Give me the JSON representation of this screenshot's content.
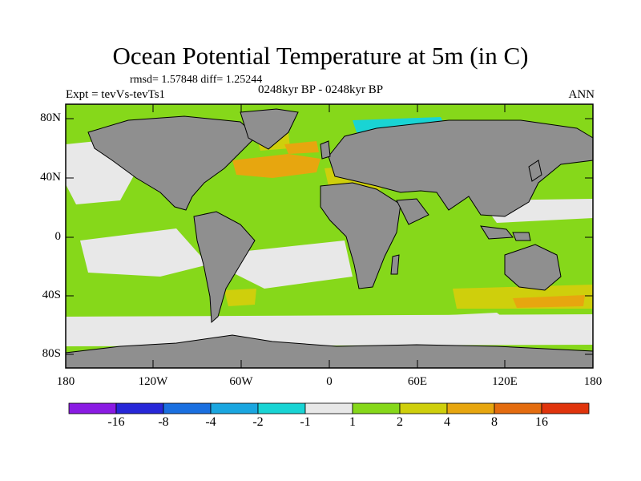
{
  "title": "Ocean Potential Temperature at 5m (in C)",
  "stats": "rmsd= 1.57848 diff= 1.25244",
  "experiment": "Expt = tevVs-tevTs1",
  "period": "0248kyr BP - 0248kyr BP",
  "season": "ANN",
  "lat_labels": [
    "80N",
    "40N",
    "0",
    "40S",
    "80S"
  ],
  "lon_labels": [
    "180",
    "120W",
    "60W",
    "0",
    "60E",
    "120E",
    "180"
  ],
  "colorbar": {
    "colors": [
      "#8a1be3",
      "#2727d8",
      "#1a6fe0",
      "#1aa6e0",
      "#19d4d4",
      "#e8e8e8",
      "#86d81a",
      "#cfcf0c",
      "#e7a60f",
      "#e46c0f",
      "#e0340c"
    ],
    "labels": [
      "-16",
      "-8",
      "-4",
      "-2",
      "-1",
      "1",
      "2",
      "4",
      "8",
      "16"
    ]
  },
  "map_colors": {
    "ocean_base": "#86d81a",
    "land": "#8f8f8f",
    "neutral": "#e8e8e8",
    "warm": "#cfcf0c",
    "warmer": "#e7a60f",
    "cool": "#19d4d4",
    "cold": "#1aa6e0",
    "colder": "#1a6fe0"
  }
}
